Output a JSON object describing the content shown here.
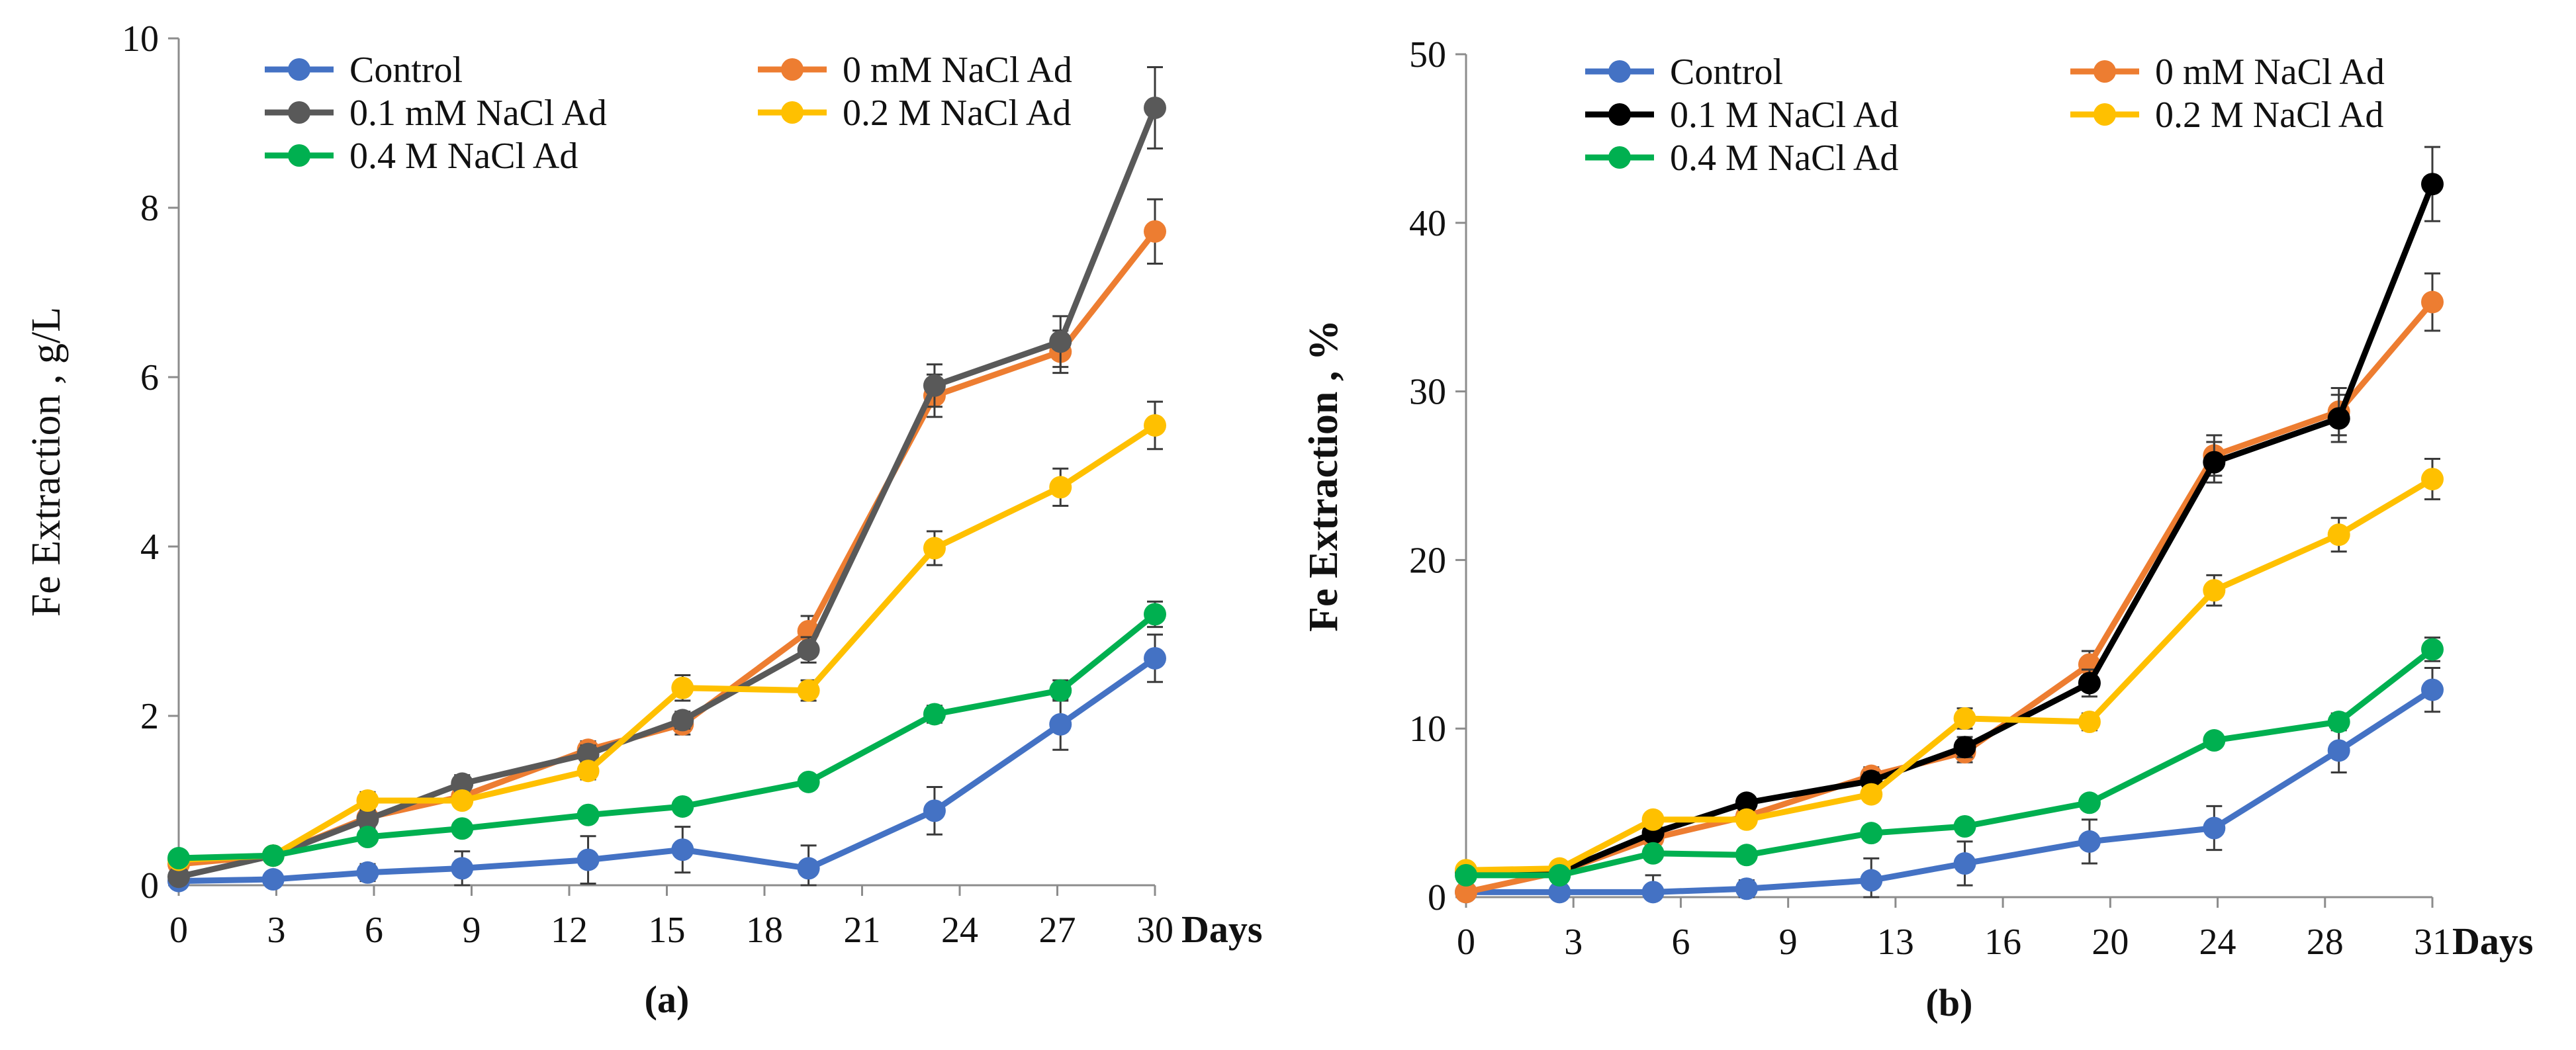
{
  "chart_data": [
    {
      "type": "line",
      "caption": "(a)",
      "xlabel": "Days",
      "ylabel": "Fe Extraction , g/L",
      "x": [
        0,
        3,
        6,
        9,
        13,
        16,
        20,
        24,
        28,
        31
      ],
      "xtick_labels": [
        "0",
        "3",
        "6",
        "9",
        "12",
        "15",
        "18",
        "21",
        "24",
        "27",
        "30"
      ],
      "xlim": [
        0,
        31
      ],
      "ylim": [
        0,
        10
      ],
      "yticks": [
        0,
        2,
        4,
        6,
        8,
        10
      ],
      "grid": false,
      "legend": "top",
      "series": [
        {
          "name": "Control",
          "color": "#4472C4",
          "values": [
            0.05,
            0.07,
            0.15,
            0.2,
            0.3,
            0.42,
            0.2,
            0.88,
            1.9,
            2.68
          ],
          "errors": [
            0.05,
            0.05,
            0.1,
            0.2,
            0.28,
            0.27,
            0.27,
            0.28,
            0.3,
            0.28
          ]
        },
        {
          "name": "0 mM NaCl Ad",
          "color": "#ED7D31",
          "values": [
            0.25,
            0.35,
            0.8,
            1.05,
            1.6,
            1.9,
            3.0,
            5.78,
            6.3,
            7.72
          ],
          "errors": [
            0.05,
            0.05,
            0.1,
            0.1,
            0.1,
            0.12,
            0.18,
            0.25,
            0.25,
            0.38
          ]
        },
        {
          "name": "0.1 mM NaCl Ad",
          "color": "#595959",
          "values": [
            0.1,
            0.35,
            0.78,
            1.2,
            1.55,
            1.95,
            2.78,
            5.9,
            6.42,
            9.18
          ],
          "errors": [
            0.05,
            0.05,
            0.1,
            0.1,
            0.1,
            0.1,
            0.15,
            0.25,
            0.3,
            0.48
          ]
        },
        {
          "name": "0.2 M NaCl Ad",
          "color": "#FFC000",
          "values": [
            0.3,
            0.35,
            1.0,
            1.0,
            1.35,
            2.33,
            2.3,
            3.98,
            4.7,
            5.43
          ],
          "errors": [
            0.05,
            0.05,
            0.1,
            0.08,
            0.1,
            0.15,
            0.12,
            0.2,
            0.22,
            0.28
          ]
        },
        {
          "name": "0.4 M NaCl Ad",
          "color": "#00B050",
          "values": [
            0.32,
            0.35,
            0.57,
            0.67,
            0.83,
            0.93,
            1.22,
            2.02,
            2.3,
            3.2
          ],
          "errors": [
            0.05,
            0.05,
            0.06,
            0.05,
            0.05,
            0.06,
            0.07,
            0.1,
            0.12,
            0.15
          ]
        }
      ]
    },
    {
      "type": "line",
      "caption": "(b)",
      "xlabel": "Days",
      "ylabel": "Fe Extraction , %",
      "x": [
        0,
        3,
        6,
        9,
        13,
        16,
        20,
        24,
        28,
        31
      ],
      "xtick_labels": [
        "0",
        "3",
        "6",
        "9",
        "13",
        "16",
        "20",
        "24",
        "28",
        "31"
      ],
      "xlim": [
        0,
        31
      ],
      "ylim": [
        0,
        50
      ],
      "yticks": [
        0,
        10,
        20,
        30,
        40,
        50
      ],
      "grid": false,
      "legend": "top",
      "series": [
        {
          "name": "Control",
          "color": "#4472C4",
          "values": [
            0.3,
            0.3,
            0.3,
            0.5,
            1.0,
            2.0,
            3.3,
            4.1,
            8.7,
            12.3
          ],
          "errors": [
            0.2,
            0.2,
            1.0,
            0.5,
            1.3,
            1.3,
            1.3,
            1.3,
            1.3,
            1.3
          ]
        },
        {
          "name": "0 mM NaCl Ad",
          "color": "#ED7D31",
          "values": [
            0.3,
            1.5,
            3.5,
            4.8,
            7.2,
            8.6,
            13.8,
            26.2,
            28.8,
            35.3
          ],
          "errors": [
            0.2,
            0.2,
            0.3,
            0.4,
            0.5,
            0.6,
            0.8,
            1.2,
            1.4,
            1.7
          ]
        },
        {
          "name": "0.1 M NaCl Ad",
          "color": "#000000",
          "values": [
            1.5,
            1.5,
            3.8,
            5.6,
            6.9,
            8.9,
            12.7,
            25.8,
            28.4,
            42.3
          ],
          "errors": [
            0.2,
            0.2,
            0.3,
            0.4,
            0.5,
            0.6,
            0.8,
            1.2,
            1.4,
            2.2
          ]
        },
        {
          "name": "0.2 M NaCl Ad",
          "color": "#FFC000",
          "values": [
            1.6,
            1.7,
            4.6,
            4.6,
            6.1,
            10.6,
            10.4,
            18.2,
            21.5,
            24.8
          ],
          "errors": [
            0.2,
            0.2,
            0.3,
            0.3,
            0.4,
            0.6,
            0.5,
            0.9,
            1.0,
            1.2
          ]
        },
        {
          "name": "0.4 M NaCl Ad",
          "color": "#00B050",
          "values": [
            1.3,
            1.3,
            2.6,
            2.5,
            3.8,
            4.2,
            5.6,
            9.3,
            10.4,
            14.7
          ],
          "errors": [
            0.2,
            0.2,
            0.2,
            0.2,
            0.2,
            0.3,
            0.3,
            0.4,
            0.5,
            0.7
          ]
        }
      ]
    }
  ]
}
